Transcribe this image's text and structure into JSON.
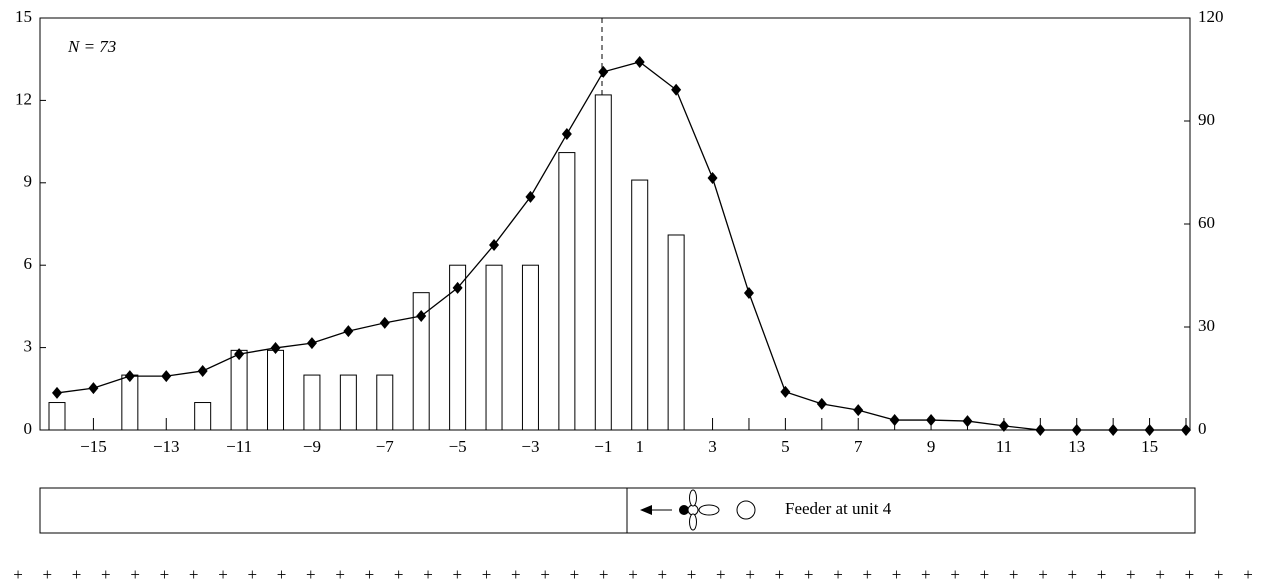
{
  "chart_data": {
    "type": "bar",
    "categories": [
      null,
      "−15",
      null,
      "−13",
      null,
      "−11",
      null,
      "−9",
      null,
      "−7",
      null,
      "−5",
      null,
      "−3",
      null,
      "−1",
      "1",
      null,
      "3",
      null,
      "5",
      null,
      "7",
      null,
      "9",
      null,
      "11",
      null,
      "13",
      null,
      "15",
      null
    ],
    "series": [
      {
        "type": "bar",
        "color": "#ffffff",
        "values": [
          1,
          0,
          2,
          0,
          1,
          2.9,
          2.9,
          2,
          2,
          2,
          5,
          6,
          6,
          6,
          10.1,
          12.2,
          9.1,
          7.1,
          0,
          0,
          0,
          0,
          0,
          0,
          0,
          0,
          0,
          0,
          0,
          0,
          0,
          0
        ]
      },
      {
        "type": "line",
        "axis": "y2",
        "color": "#000000",
        "values": [
          10.8,
          12.2,
          15.7,
          15.7,
          17.2,
          22.1,
          23.9,
          25.3,
          28.8,
          31.2,
          33.2,
          41.4,
          53.9,
          67.9,
          86.2,
          104.3,
          107.2,
          99.1,
          73.4,
          39.9,
          11.1,
          7.6,
          5.8,
          2.9,
          2.9,
          2.6,
          1.2,
          0,
          0,
          0,
          0,
          0
        ]
      }
    ],
    "ylim": [
      0,
      15
    ],
    "yticks": [
      0,
      3,
      6,
      9,
      12,
      15
    ],
    "y2lim": [
      0,
      120
    ],
    "y2ticks": [
      0,
      30,
      60,
      90,
      120
    ],
    "annotations": [
      "N = 73",
      "Feeder at unit 4"
    ]
  }
}
